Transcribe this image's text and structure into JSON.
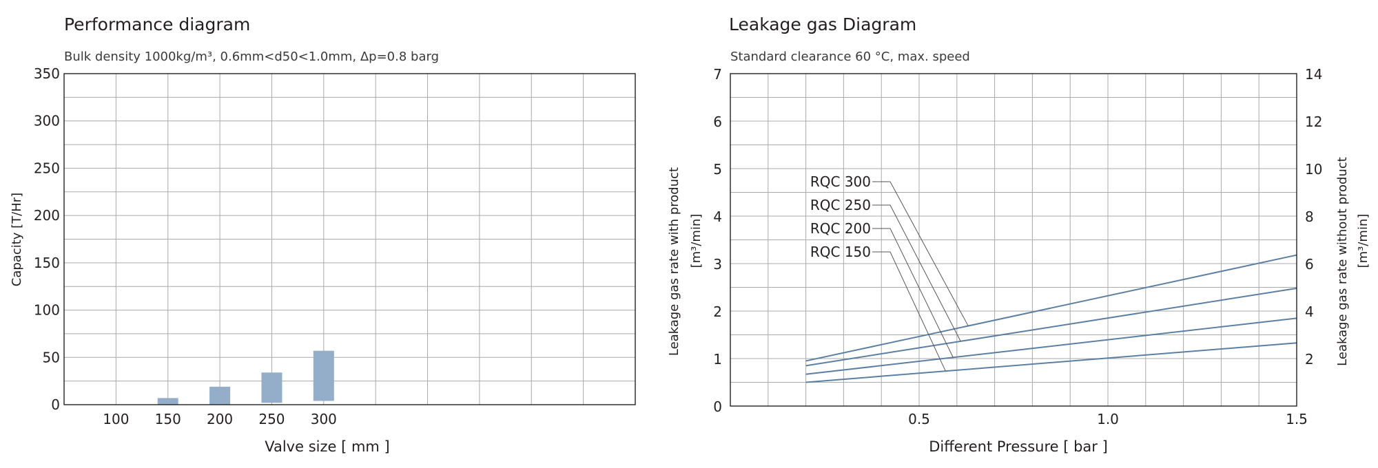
{
  "chart_data": [
    {
      "type": "bar",
      "title": "Performance diagram",
      "subtitle": "Bulk density 1000kg/m³,  0.6mm<d50<1.0mm, Δp=0.8 barg",
      "xlabel": "Valve size [ mm ]",
      "ylabel": "Capacity [T/Hr]",
      "ylim": [
        0,
        350
      ],
      "yticks": [
        "0",
        "50",
        "100",
        "150",
        "200",
        "250",
        "300",
        "350"
      ],
      "categories": [
        "100",
        "150",
        "200",
        "250",
        "300"
      ],
      "bars": [
        {
          "category": "150",
          "low": 0,
          "high": 7
        },
        {
          "category": "200",
          "low": 0,
          "high": 19
        },
        {
          "category": "250",
          "low": 2,
          "high": 34
        },
        {
          "category": "300",
          "low": 4,
          "high": 57
        }
      ],
      "bar_color": "#94adc8",
      "grid": true
    },
    {
      "type": "line",
      "title": "Leakage gas Diagram",
      "subtitle": "Standard clearance  60 °C, max. speed",
      "xlabel": "Different Pressure [ bar ]",
      "ylabel": "Leakage gas rate with product",
      "ylabel_unit": "[m³/min]",
      "y2label": "Leakage gas rate without product",
      "y2label_unit": "[m³/min]",
      "xlim": [
        0,
        1.5
      ],
      "xticks": [
        "0.5",
        "1.0",
        "1.5"
      ],
      "ylim": [
        0,
        7
      ],
      "yticks": [
        "0",
        "1",
        "2",
        "3",
        "4",
        "5",
        "6",
        "7"
      ],
      "y2ticks": [
        "2",
        "4",
        "6",
        "8",
        "10",
        "12",
        "14"
      ],
      "series": [
        {
          "name": "RQC 300",
          "x": [
            0.2,
            1.5
          ],
          "y": [
            0.95,
            3.18
          ]
        },
        {
          "name": "RQC 250",
          "x": [
            0.2,
            1.5
          ],
          "y": [
            0.85,
            2.48
          ]
        },
        {
          "name": "RQC 200",
          "x": [
            0.2,
            1.5
          ],
          "y": [
            0.67,
            1.85
          ]
        },
        {
          "name": "RQC 150",
          "x": [
            0.2,
            1.5
          ],
          "y": [
            0.5,
            1.33
          ]
        }
      ],
      "line_color": "#5a7fa3",
      "grid": true
    }
  ]
}
